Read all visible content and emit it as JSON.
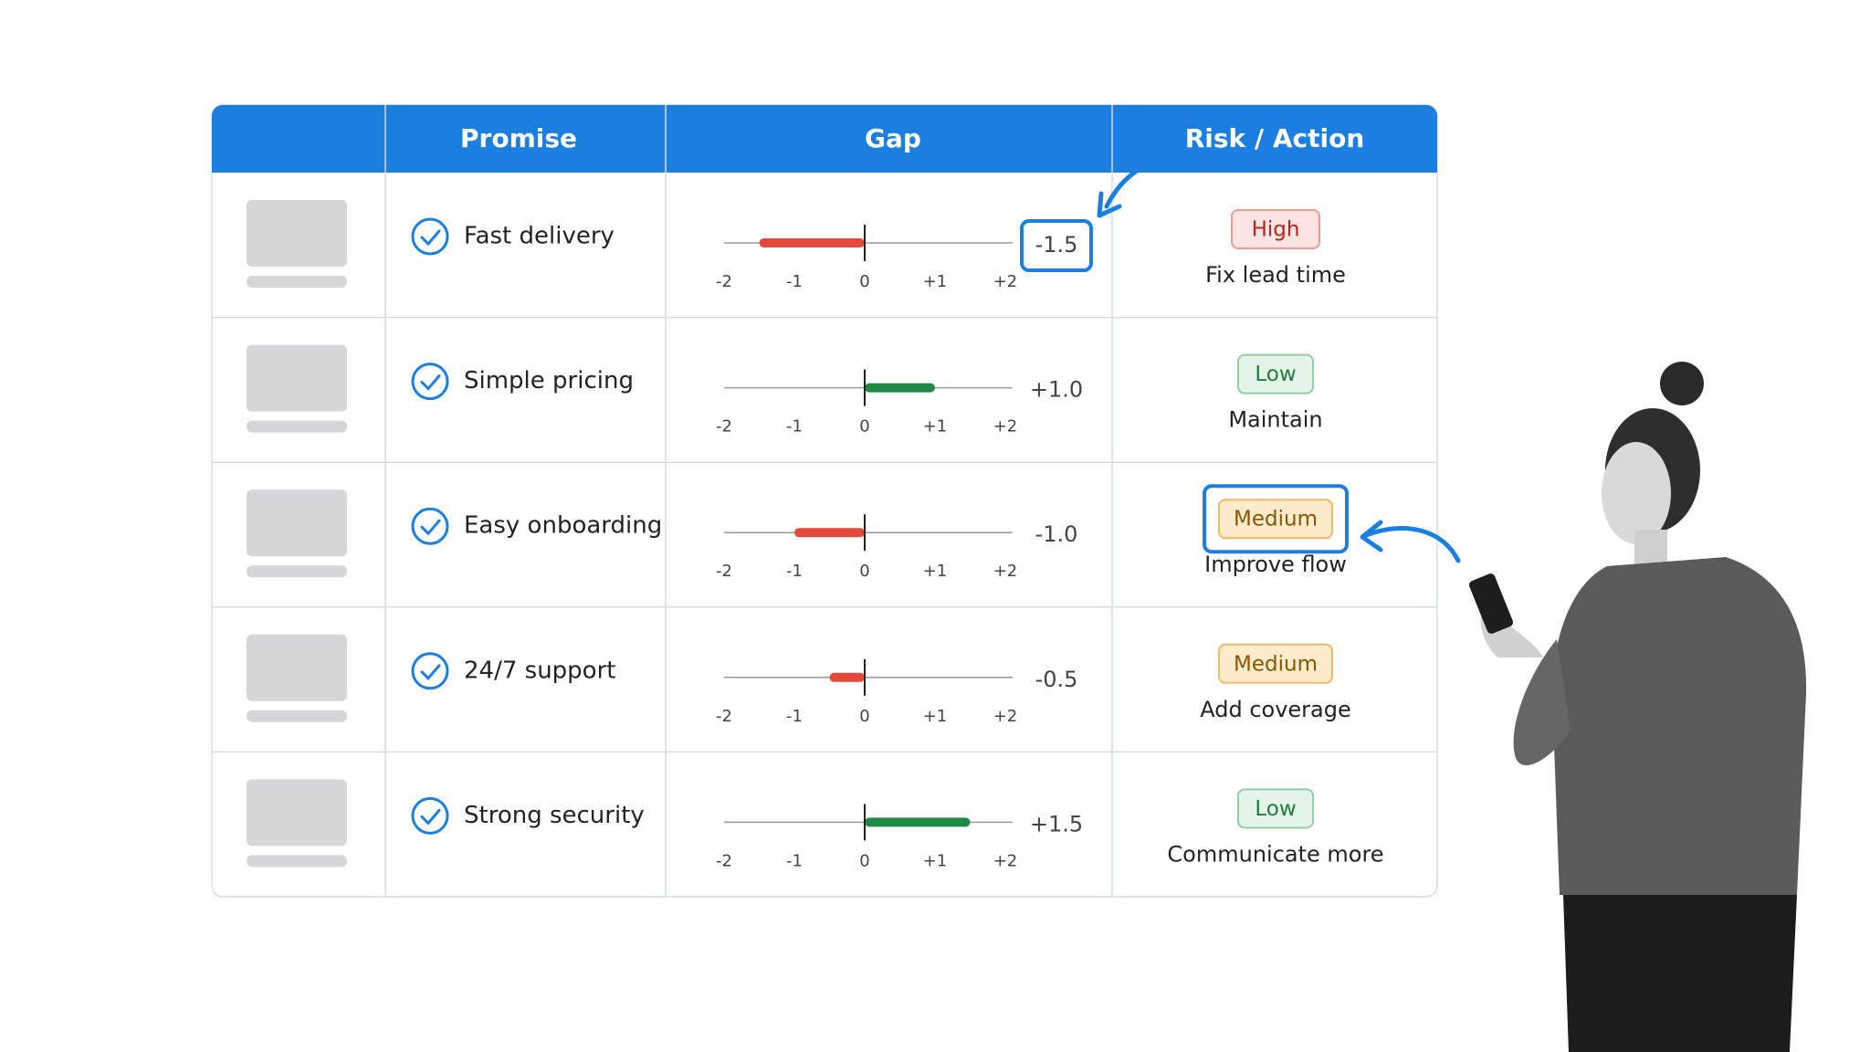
{
  "header": {
    "columns": [
      "Promise",
      "Gap",
      "Risk / Action"
    ]
  },
  "gap_scale": {
    "xlim": [
      -2,
      2
    ],
    "ticks": [
      -2,
      -1,
      0,
      {
        "value": 1,
        "label": "+1"
      },
      {
        "value": 2,
        "label": "+2"
      }
    ],
    "negative_color": "#e5493a",
    "positive_color": "#1e8a45"
  },
  "risk_colors": {
    "High": {
      "fill": "#fde3e1",
      "stroke": "#ef9a94",
      "text": "#b3261e"
    },
    "Low": {
      "fill": "#e4f4e9",
      "stroke": "#90cfa4",
      "text": "#1e7d3c"
    },
    "Medium": {
      "fill": "#fdebcc",
      "stroke": "#f2b866",
      "text": "#8a5600"
    }
  },
  "table": {
    "rows": [
      {
        "promise": "Fast delivery",
        "gap": -1.5,
        "gap_label": "-1.5",
        "risk": "High",
        "action": "Fix lead time",
        "highlight": "gap"
      },
      {
        "promise": "Simple pricing",
        "gap": 1.0,
        "gap_label": "+1.0",
        "risk": "Low",
        "action": "Maintain"
      },
      {
        "promise": "Easy onboarding",
        "gap": -1.0,
        "gap_label": "-1.0",
        "risk": "Medium",
        "action": "Improve flow",
        "highlight": "risk"
      },
      {
        "promise": "24/7 support",
        "gap": -0.5,
        "gap_label": "-0.5",
        "risk": "Medium",
        "action": "Add coverage"
      },
      {
        "promise": "Strong security",
        "gap": 1.5,
        "gap_label": "+1.5",
        "risk": "Low",
        "action": "Communicate more"
      }
    ]
  }
}
